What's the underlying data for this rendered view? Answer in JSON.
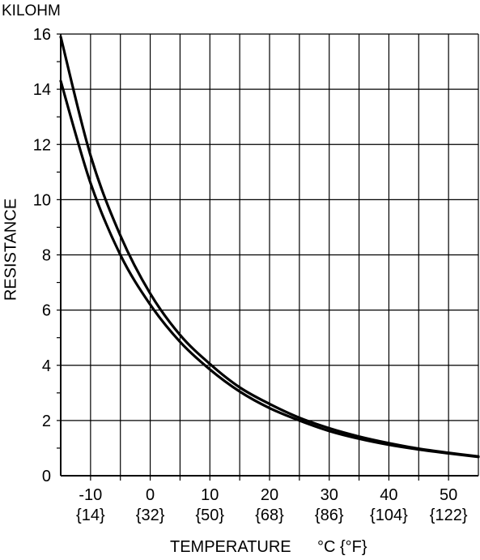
{
  "chart_data": {
    "type": "line",
    "unit_label": "KILOHM",
    "ylabel": "RESISTANCE",
    "xlabel": "TEMPERATURE",
    "x_unit": "°C {°F}",
    "xlim": [
      -15,
      55
    ],
    "ylim": [
      0,
      16
    ],
    "x_ticks": [
      {
        "value": -10,
        "label": "-10",
        "sublabel": "{14}"
      },
      {
        "value": 0,
        "label": "0",
        "sublabel": "{32}"
      },
      {
        "value": 10,
        "label": "10",
        "sublabel": "{50}"
      },
      {
        "value": 20,
        "label": "20",
        "sublabel": "{68}"
      },
      {
        "value": 30,
        "label": "30",
        "sublabel": "{86}"
      },
      {
        "value": 40,
        "label": "40",
        "sublabel": "{104}"
      },
      {
        "value": 50,
        "label": "50",
        "sublabel": "{122}"
      }
    ],
    "y_ticks": [
      0,
      2,
      4,
      6,
      8,
      10,
      12,
      14,
      16
    ],
    "grid": true,
    "series": [
      {
        "x": [
          -15,
          -10,
          -5,
          0,
          5,
          10,
          15,
          20,
          25,
          30,
          35,
          40,
          45,
          50,
          55
        ],
        "y": [
          15.9,
          11.6,
          8.7,
          6.6,
          5.1,
          4.05,
          3.2,
          2.6,
          2.1,
          1.72,
          1.42,
          1.18,
          0.98,
          0.83,
          0.7
        ]
      },
      {
        "x": [
          -15,
          -10,
          -5,
          0,
          5,
          10,
          15,
          20,
          25,
          30,
          35,
          40,
          45,
          50,
          55
        ],
        "y": [
          14.3,
          10.6,
          8.0,
          6.2,
          4.85,
          3.85,
          3.05,
          2.45,
          2.0,
          1.62,
          1.34,
          1.12,
          0.95,
          0.81,
          0.68
        ]
      }
    ],
    "line_color": "#000000"
  }
}
